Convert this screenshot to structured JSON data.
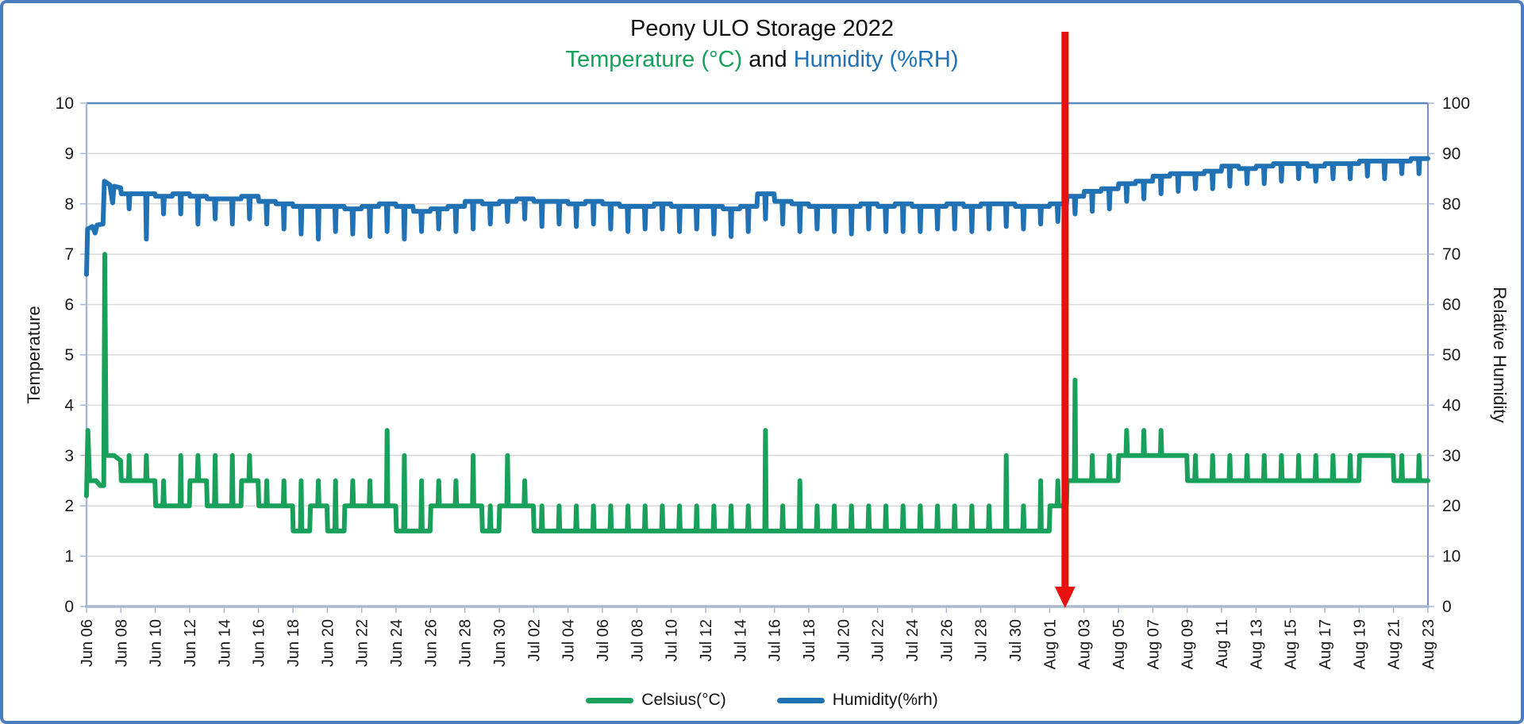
{
  "title": {
    "line1": "Peony ULO Storage 2022",
    "temp_part": "Temperature (°C)",
    "and_part": " and ",
    "rh_part": "Humidity (%RH)"
  },
  "colors": {
    "temperature": "#19a15b",
    "humidity": "#2171b5",
    "arrow": "#e81111",
    "frame_border": "#4a7cc0",
    "grid": "#d9d9d9",
    "axis": "#a9b9d0",
    "border_top": "#5f88bd",
    "border_right": "#6f94c4",
    "text": "#1a1a1a"
  },
  "chart_data": {
    "type": "line",
    "title": "Peony ULO Storage 2022",
    "subtitle": "Temperature (°C) and Humidity (%RH)",
    "x_axis": {
      "tick_step_days": 2,
      "tick_labels": [
        "Jun 06",
        "Jun 08",
        "Jun 10",
        "Jun 12",
        "Jun 14",
        "Jun 16",
        "Jun 18",
        "Jun 20",
        "Jun 22",
        "Jun 24",
        "Jun 26",
        "Jun 28",
        "Jun 30",
        "Jul 02",
        "Jul 04",
        "Jul 06",
        "Jul 08",
        "Jul 10",
        "Jul 12",
        "Jul 14",
        "Jul 16",
        "Jul 18",
        "Jul 20",
        "Jul 22",
        "Jul 24",
        "Jul 26",
        "Jul 28",
        "Jul 30",
        "Aug 01",
        "Aug 03",
        "Aug 05",
        "Aug 07",
        "Aug 09",
        "Aug 11",
        "Aug 13",
        "Aug 15",
        "Aug 17",
        "Aug 19",
        "Aug 21",
        "Aug 23"
      ]
    },
    "y_left": {
      "label": "Temperature",
      "min": 0,
      "max": 10,
      "ticks": [
        0,
        1,
        2,
        3,
        4,
        5,
        6,
        7,
        8,
        9,
        10
      ]
    },
    "y_right": {
      "label": "Relative Humidity",
      "min": 0,
      "max": 100,
      "ticks": [
        0,
        10,
        20,
        30,
        40,
        50,
        60,
        70,
        80,
        90,
        100
      ]
    },
    "legend_position": "bottom",
    "grid": true,
    "annotation": {
      "shape": "vertical-arrow-down",
      "day": 56.9,
      "color": "#e81111"
    },
    "series": [
      {
        "name": "Celsius(°C)",
        "color": "#19a15b",
        "axis": "left",
        "lead_days": 2,
        "lead_points": [
          [
            0,
            2.2
          ],
          [
            0.08,
            3.5
          ],
          [
            0.18,
            2.5
          ],
          [
            0.55,
            2.5
          ],
          [
            0.8,
            2.4
          ],
          [
            1.0,
            2.4
          ],
          [
            1.06,
            7.0
          ],
          [
            1.14,
            3.0
          ],
          [
            1.6,
            3.0
          ],
          [
            1.98,
            2.9
          ]
        ],
        "daily_base": [
          2.5,
          3.0,
          2.5,
          2.5,
          2.0,
          2.0,
          2.5,
          2.0,
          2.0,
          2.5,
          2.0,
          2.0,
          1.5,
          2.0,
          1.5,
          2.0,
          2.0,
          2.0,
          1.5,
          1.5,
          2.0,
          2.0,
          2.0,
          1.5,
          2.0,
          2.0,
          1.5,
          1.5,
          1.5,
          1.5,
          1.5,
          1.5,
          1.5,
          1.5,
          1.5,
          1.5,
          1.5,
          1.5,
          1.5,
          1.5,
          1.5,
          1.5,
          1.5,
          1.5,
          1.5,
          1.5,
          1.5,
          1.5,
          1.5,
          1.5,
          1.5,
          1.5,
          1.5,
          1.5,
          1.5,
          1.5,
          2.0,
          2.5,
          2.5,
          2.5,
          3.0,
          3.0,
          3.0,
          3.0,
          2.5,
          2.5,
          2.5,
          2.5,
          2.5,
          2.5,
          2.5,
          2.5,
          2.5,
          2.5,
          3.0,
          3.0,
          2.5,
          2.5,
          2.5
        ],
        "daily_pulse": [
          3.5,
          7.0,
          3.0,
          3.0,
          2.5,
          3.0,
          3.0,
          3.0,
          3.0,
          3.0,
          2.5,
          2.5,
          2.5,
          2.5,
          2.5,
          2.5,
          2.5,
          3.5,
          3.0,
          2.5,
          2.5,
          2.5,
          3.0,
          2.0,
          3.0,
          2.5,
          2.0,
          2.0,
          2.0,
          2.0,
          2.0,
          2.0,
          2.0,
          2.0,
          2.0,
          2.0,
          2.0,
          2.0,
          2.0,
          3.5,
          2.0,
          2.5,
          2.0,
          2.0,
          2.0,
          2.0,
          2.0,
          2.0,
          2.0,
          2.0,
          2.0,
          2.0,
          2.0,
          3.0,
          2.0,
          2.5,
          2.5,
          4.5,
          3.0,
          3.0,
          3.5,
          3.5,
          3.5,
          3.0,
          3.0,
          3.0,
          3.0,
          3.0,
          3.0,
          3.0,
          3.0,
          3.0,
          3.0,
          3.0,
          3.0,
          3.0,
          3.0,
          3.0,
          3.0
        ]
      },
      {
        "name": "Humidity(%rh)",
        "color": "#2171b5",
        "axis": "right",
        "lead_days": 2,
        "lead_points": [
          [
            0,
            66
          ],
          [
            0.06,
            75
          ],
          [
            0.35,
            75.5
          ],
          [
            0.5,
            74.2
          ],
          [
            0.62,
            75.8
          ],
          [
            0.96,
            76
          ],
          [
            1.04,
            84.5
          ],
          [
            1.35,
            83.8
          ],
          [
            1.52,
            80.2
          ],
          [
            1.6,
            83.5
          ],
          [
            1.98,
            83.2
          ]
        ],
        "daily_base": [
          75.5,
          83.5,
          82.0,
          82.0,
          81.5,
          82.0,
          81.5,
          81.0,
          81.0,
          81.5,
          80.5,
          80.0,
          79.5,
          79.5,
          79.5,
          79.0,
          79.5,
          80.0,
          79.5,
          78.5,
          79.0,
          79.5,
          80.5,
          80.0,
          80.5,
          81.0,
          80.5,
          80.5,
          80.0,
          80.5,
          80.0,
          79.5,
          79.5,
          80.0,
          79.5,
          79.5,
          79.5,
          79.0,
          79.5,
          82.0,
          80.5,
          80.0,
          79.5,
          79.5,
          79.5,
          80.0,
          79.5,
          80.0,
          79.5,
          79.5,
          80.0,
          79.5,
          80.0,
          80.0,
          79.5,
          79.5,
          80.0,
          81.5,
          82.5,
          83.0,
          84.0,
          84.5,
          85.5,
          86.0,
          86.0,
          86.5,
          87.5,
          87.0,
          87.5,
          88.0,
          88.0,
          87.5,
          88.0,
          88.0,
          88.5,
          88.5,
          88.5,
          89.0,
          89.0
        ],
        "daily_pulse": [
          74.0,
          80.0,
          79.0,
          73.0,
          78.0,
          78.0,
          76.0,
          77.0,
          76.0,
          77.0,
          76.0,
          75.0,
          74.0,
          73.0,
          74.5,
          74.0,
          73.5,
          74.5,
          73.0,
          74.5,
          75.0,
          74.5,
          75.0,
          76.0,
          76.5,
          77.0,
          75.5,
          76.0,
          75.5,
          76.0,
          75.0,
          74.5,
          75.0,
          75.0,
          74.5,
          75.0,
          74.0,
          73.5,
          74.5,
          77.0,
          76.0,
          74.5,
          75.0,
          74.5,
          74.0,
          75.0,
          74.5,
          74.5,
          74.5,
          75.0,
          75.0,
          74.5,
          75.0,
          75.5,
          75.0,
          76.0,
          76.5,
          78.0,
          78.5,
          79.0,
          80.5,
          81.0,
          82.0,
          82.5,
          83.0,
          83.0,
          83.5,
          84.0,
          84.0,
          84.5,
          85.0,
          84.5,
          85.0,
          85.0,
          85.5,
          85.0,
          86.0,
          86.0,
          86.5
        ]
      }
    ]
  },
  "legend": {
    "celsius_label": "Celsius(°C)",
    "humidity_label": "Humidity(%rh)"
  }
}
